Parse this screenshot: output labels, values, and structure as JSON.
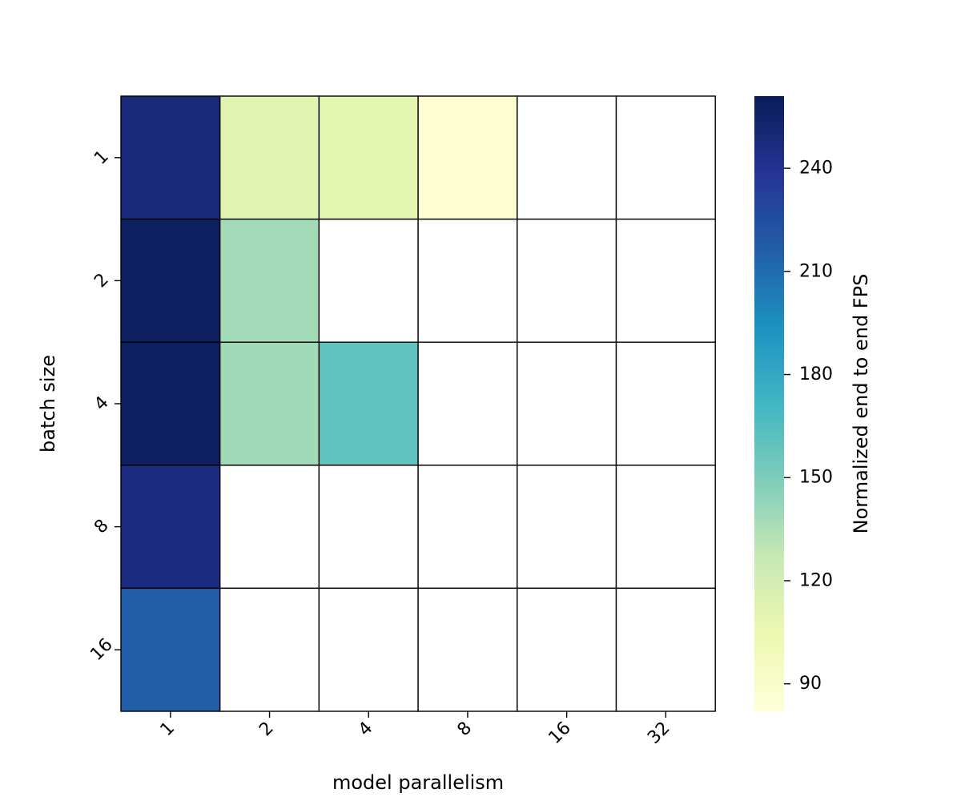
{
  "chart_data": {
    "type": "heatmap",
    "xlabel": "model parallelism",
    "ylabel": "batch size",
    "x_categories": [
      "1",
      "2",
      "4",
      "8",
      "16",
      "32"
    ],
    "y_categories": [
      "1",
      "2",
      "4",
      "8",
      "16"
    ],
    "values": [
      [
        248,
        111,
        109,
        86,
        null,
        null
      ],
      [
        258,
        138,
        null,
        null,
        null,
        null
      ],
      [
        258,
        139,
        160,
        null,
        null,
        null
      ],
      [
        246,
        null,
        null,
        null,
        null,
        null
      ],
      [
        217,
        null,
        null,
        null,
        null,
        null
      ]
    ],
    "colorbar": {
      "label": "Normalized end to end FPS",
      "range": [
        82,
        261
      ],
      "ticks": [
        90,
        120,
        150,
        180,
        210,
        240
      ],
      "colormap": "YlGnBu",
      "colormap_stops": [
        "#ffffd9",
        "#edf8b1",
        "#c7e9b4",
        "#7fcdbb",
        "#41b6c4",
        "#1d91c0",
        "#225ea8",
        "#253494",
        "#081d58"
      ]
    },
    "missing_color": "#ffffff",
    "gridline_color": "#000000",
    "grid": true
  }
}
